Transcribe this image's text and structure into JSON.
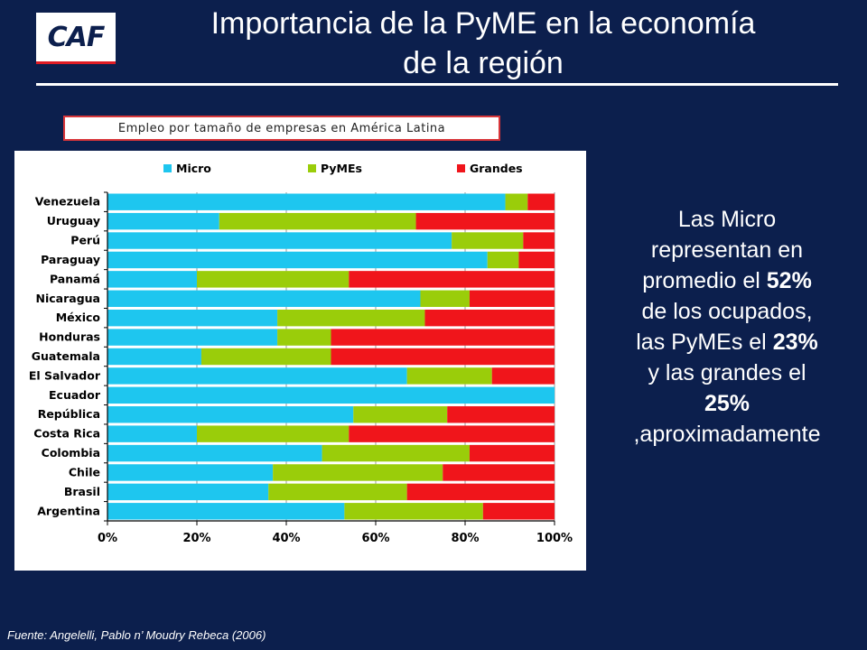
{
  "header": {
    "logo_text": "CAF",
    "title_line1": "Importancia de la PyME en la economía",
    "title_line2": "de la región"
  },
  "colors": {
    "background": "#0c1f4d",
    "micro": "#1ec6ef",
    "pymes": "#9acd0a",
    "grandes": "#f0151b"
  },
  "chart_data": {
    "type": "bar",
    "orientation": "horizontal",
    "stacked": "percent",
    "title": "Empleo por tamaño de empresas en América Latina",
    "categories": [
      "Venezuela",
      "Uruguay",
      "Perú",
      "Paraguay",
      "Panamá",
      "Nicaragua",
      "México",
      "Honduras",
      "Guatemala",
      "El Salvador",
      "Ecuador",
      "República",
      "Costa Rica",
      "Colombia",
      "Chile",
      "Brasil",
      "Argentina"
    ],
    "series": [
      {
        "name": "Micro",
        "color": "#1ec6ef",
        "values": [
          89,
          25,
          77,
          85,
          20,
          70,
          38,
          38,
          21,
          67,
          100,
          55,
          20,
          48,
          37,
          36,
          53
        ]
      },
      {
        "name": "PyMEs",
        "color": "#9acd0a",
        "values": [
          5,
          44,
          16,
          7,
          34,
          11,
          33,
          12,
          29,
          19,
          0,
          21,
          34,
          33,
          38,
          31,
          31
        ]
      },
      {
        "name": "Grandes",
        "color": "#f0151b",
        "values": [
          6,
          31,
          7,
          8,
          46,
          19,
          29,
          50,
          50,
          14,
          0,
          24,
          46,
          19,
          25,
          33,
          16
        ]
      }
    ],
    "x_ticks": [
      "0%",
      "20%",
      "40%",
      "60%",
      "80%",
      "100%"
    ],
    "xlim": [
      0,
      100
    ],
    "legend_position": "top",
    "grid": "vertical"
  },
  "side_text": {
    "line1": "Las Micro",
    "line2": "representan en",
    "line3a": "promedio el ",
    "line3b": "52%",
    "line4": "de los ocupados,",
    "line5a": "las PyMEs el ",
    "line5b": "23%",
    "line6": "y las grandes el",
    "line7": "25%",
    "line8": ",aproximadamente"
  },
  "footer": {
    "source": "Fuente: Angelelli, Pablo n’ Moudry Rebeca (2006)"
  }
}
